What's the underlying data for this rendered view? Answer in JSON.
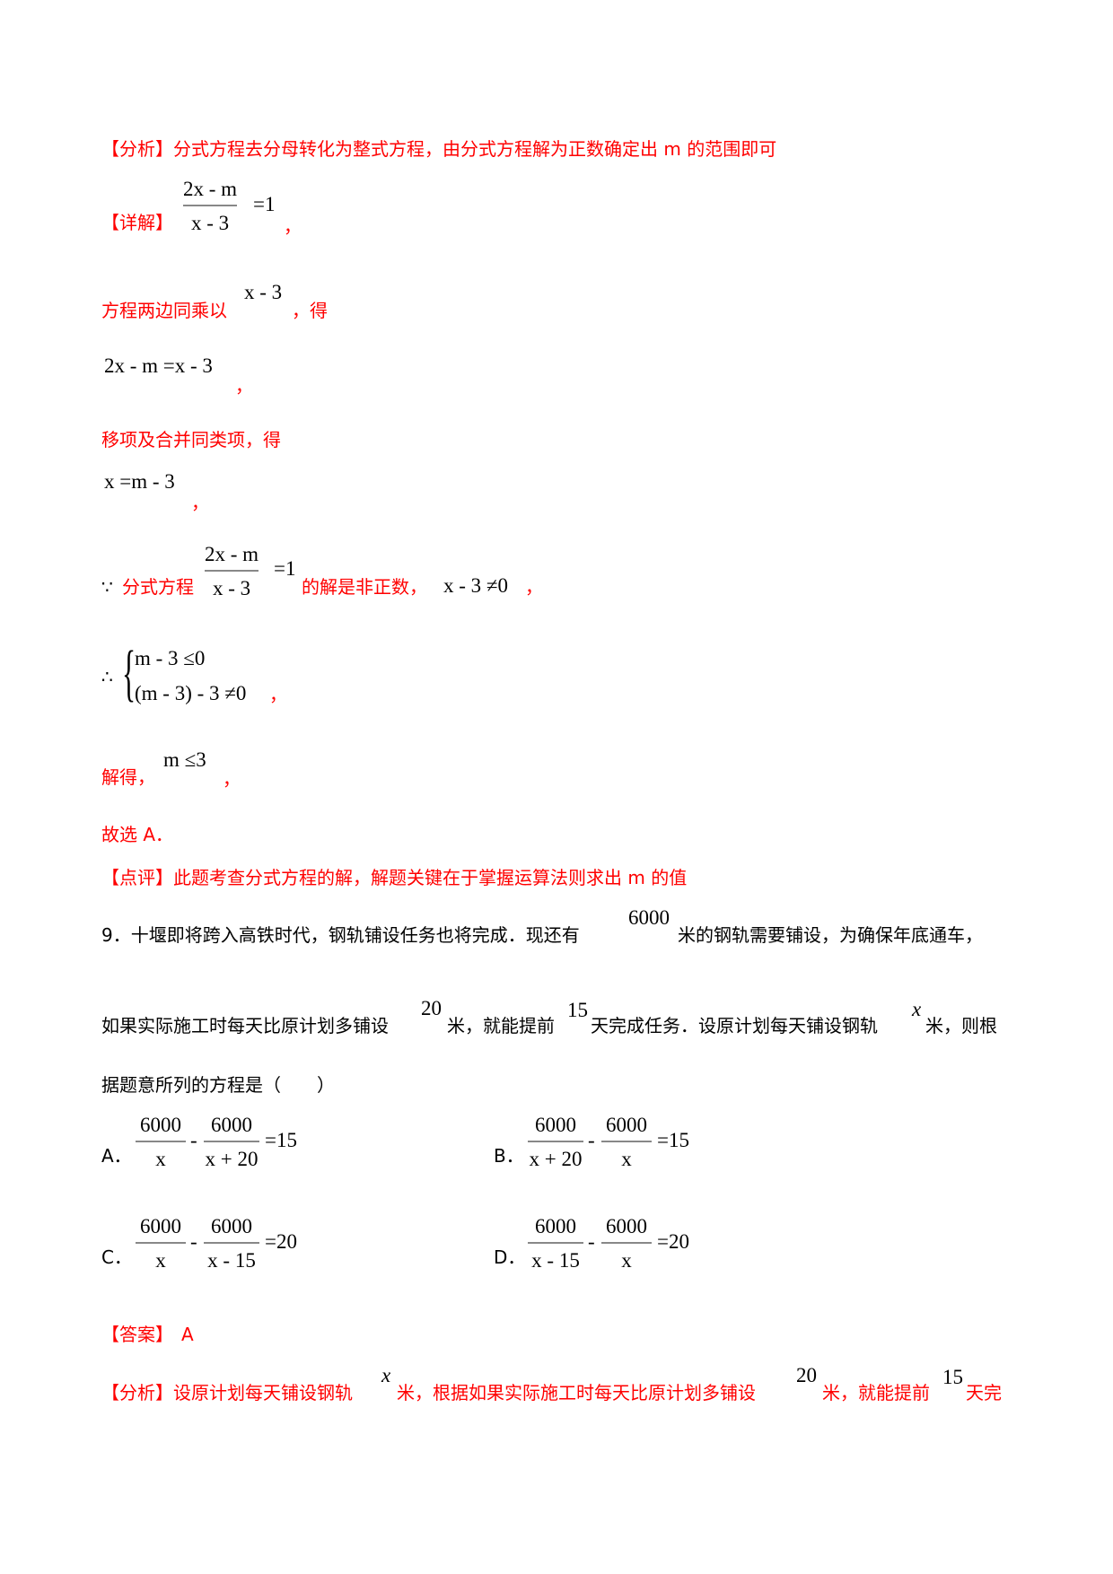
{
  "analysis1": "【分析】分式方程去分母转化为整式方程，由分式方程解为正数确定出 m 的范围即可",
  "detail_label": "【详解】",
  "eq1": {
    "num": "2x - m",
    "den": "x - 3",
    "rhs": "=1"
  },
  "comma": "，",
  "step1_text": "方程两边同乘以",
  "step1_math": "x - 3",
  "step1_suffix": "，得",
  "eq2": "2x - m =x - 3",
  "step2_text": "移项及合并同类项，得",
  "eq3": "x =m - 3",
  "since_symbol": "∵",
  "since_text": "分式方程",
  "since_suffix": "的解是非正数，",
  "since_math": "x - 3 ≠0",
  "therefore_symbol": "∴",
  "system": [
    "m - 3 ≤0",
    "(m - 3) - 3 ≠0"
  ],
  "solve_text": "解得，",
  "solve_math": "m ≤3",
  "choose": "故选 A．",
  "comment": "【点评】此题考查分式方程的解，解题关键在于掌握运算法则求出 m 的值",
  "q9": {
    "line1a": "9．十堰即将跨入高铁时代，钢轨铺设任务也将完成．现还有",
    "v6000": "6000",
    "line1b": "米的钢轨需要铺设，为确保年底通车，",
    "line2a": "如果实际施工时每天比原计划多铺设",
    "v20": "20",
    "line2b": "米，就能提前",
    "v15": "15",
    "line2c": "天完成任务．设原计划每天铺设钢轨",
    "vx": "x",
    "line2d": "米，则根",
    "line3": "据题意所列的方程是（　　）"
  },
  "options": [
    {
      "label": "A．",
      "n1": "6000",
      "d1": "x",
      "op": "-",
      "n2": "6000",
      "d2": "x + 20",
      "rhs": "=15"
    },
    {
      "label": "B．",
      "n1": "6000",
      "d1": "x + 20",
      "op": "-",
      "n2": "6000",
      "d2": "x",
      "rhs": "=15"
    },
    {
      "label": "C．",
      "n1": "6000",
      "d1": "x",
      "op": "-",
      "n2": "6000",
      "d2": "x - 15",
      "rhs": "=20"
    },
    {
      "label": "D．",
      "n1": "6000",
      "d1": "x - 15",
      "op": "-",
      "n2": "6000",
      "d2": "x",
      "rhs": "=20"
    }
  ],
  "answer_label": "【答案】",
  "answer": "A",
  "analysis2": {
    "a": "【分析】设原计划每天铺设钢轨",
    "x": "x",
    "b": "米，根据如果实际施工时每天比原计划多铺设",
    "v20": "20",
    "c": "米，就能提前",
    "v15": "15",
    "d": "天完"
  },
  "colors": {
    "highlight": "#ff0000",
    "text": "#000000"
  }
}
